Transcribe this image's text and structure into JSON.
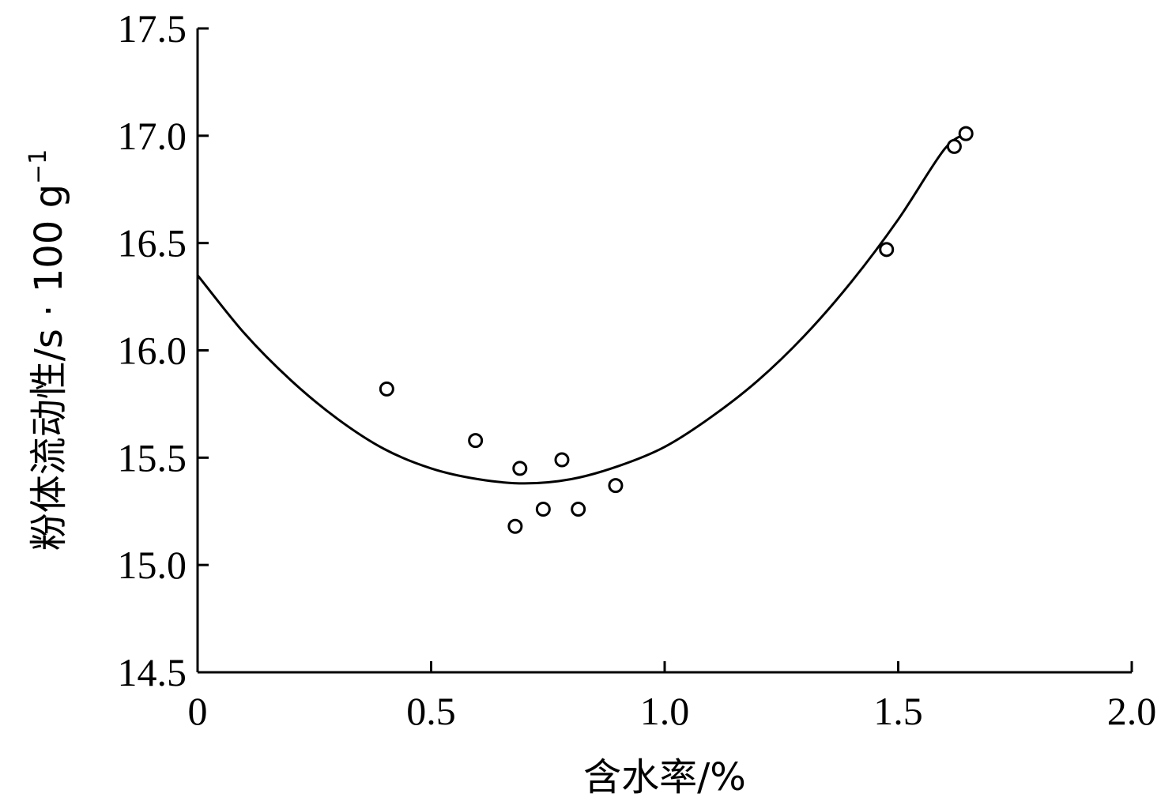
{
  "chart_data": {
    "type": "scatter",
    "xlabel": "含水率/%",
    "ylabel": {
      "main": "粉体流动性/s · 100 g",
      "superscript": "−1"
    },
    "xlim": [
      0,
      2.0
    ],
    "ylim": [
      14.5,
      17.5
    ],
    "x_ticks": [
      "0",
      "0.5",
      "1.0",
      "1.5",
      "2.0"
    ],
    "y_ticks": [
      "14.5",
      "15.0",
      "15.5",
      "16.0",
      "16.5",
      "17.0",
      "17.5"
    ],
    "grid": false,
    "series": [
      {
        "type": "scatter",
        "marker": "open-circle",
        "x": [
          0.405,
          0.595,
          0.69,
          0.78,
          0.68,
          0.74,
          0.815,
          0.895,
          1.475,
          1.62,
          1.645
        ],
        "y": [
          15.82,
          15.58,
          15.45,
          15.49,
          15.18,
          15.26,
          15.26,
          15.37,
          16.47,
          16.95,
          17.01
        ]
      },
      {
        "type": "line",
        "style": "quadratic-fit",
        "x": [
          0.0,
          0.1,
          0.2,
          0.3,
          0.4,
          0.5,
          0.6,
          0.7,
          0.8,
          0.9,
          1.0,
          1.1,
          1.2,
          1.3,
          1.4,
          1.5,
          1.6,
          1.65
        ],
        "y": [
          16.35,
          16.08,
          15.86,
          15.68,
          15.54,
          15.45,
          15.4,
          15.38,
          15.4,
          15.46,
          15.55,
          15.69,
          15.86,
          16.07,
          16.32,
          16.61,
          16.94,
          17.01
        ]
      }
    ]
  }
}
